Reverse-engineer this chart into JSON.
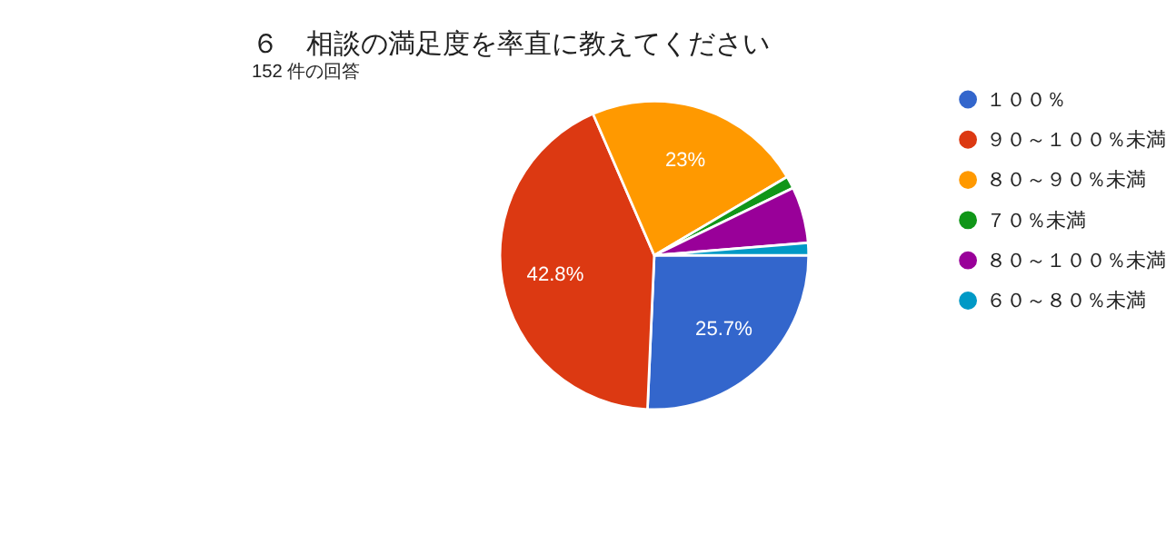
{
  "chart_data": {
    "type": "pie",
    "title": "６　相談の満足度を率直に教えてください",
    "subtitle": "152 件の回答",
    "categories": [
      "１００％",
      "９０～１００％未満",
      "８０～９０％未満",
      "７０％未満",
      "８０～１００％未満",
      "６０～８０％未満"
    ],
    "values": [
      25.7,
      42.8,
      23,
      1.3,
      5.9,
      1.3
    ],
    "colors": [
      "#3366cc",
      "#dc3912",
      "#ff9900",
      "#109618",
      "#990099",
      "#0099c6"
    ],
    "value_labels": [
      "25.7%",
      "42.8%",
      "23%",
      null,
      null,
      null
    ],
    "legend": "right"
  }
}
